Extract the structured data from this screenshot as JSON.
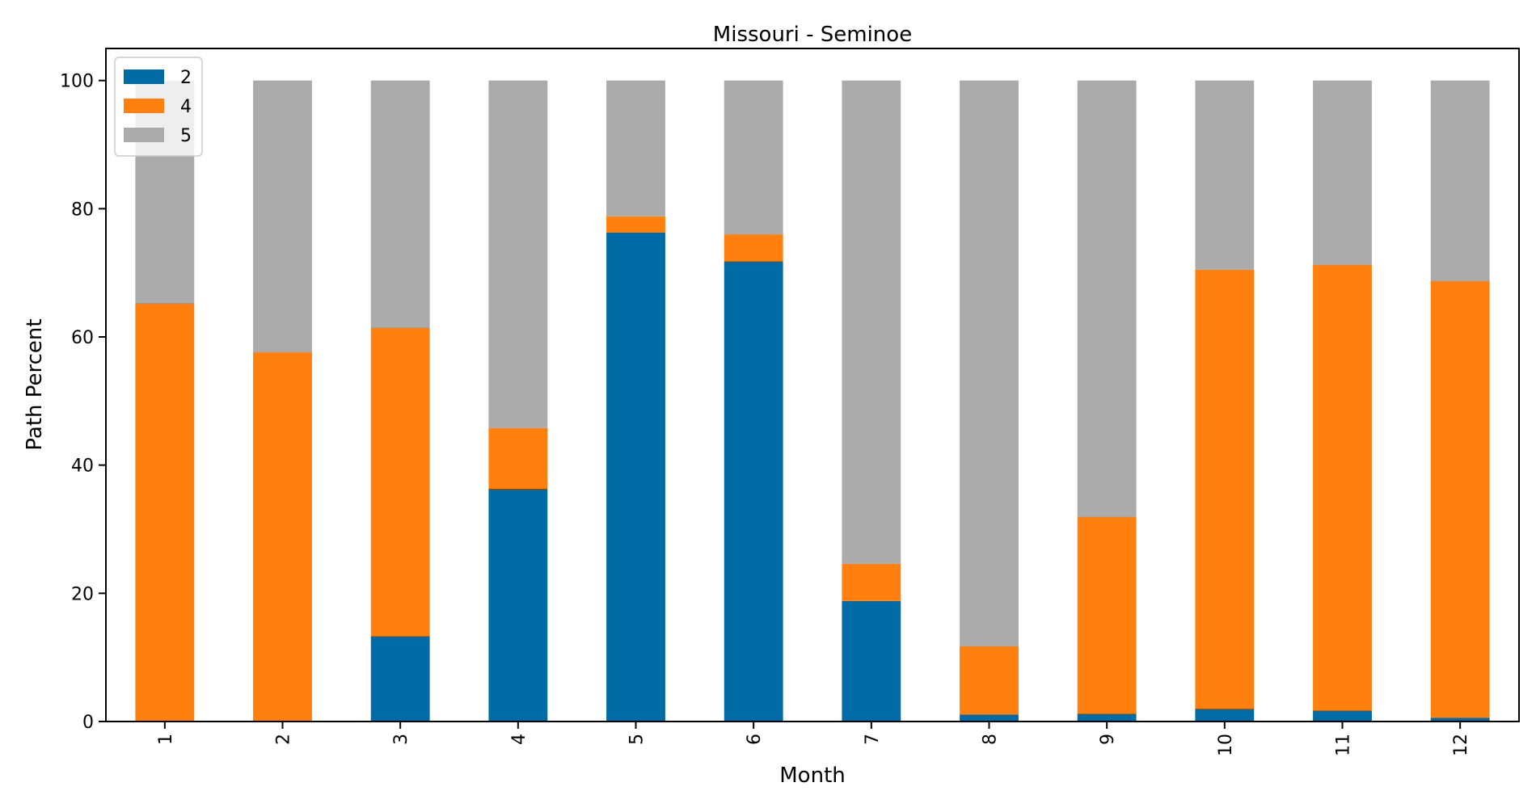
{
  "chart_data": {
    "type": "bar",
    "stacked": true,
    "title": "Missouri - Seminoe",
    "xlabel": "Month",
    "ylabel": "Path Percent",
    "categories": [
      "1",
      "2",
      "3",
      "4",
      "5",
      "6",
      "7",
      "8",
      "9",
      "10",
      "11",
      "12"
    ],
    "ylim": [
      0,
      105
    ],
    "yticks": [
      "0",
      "20",
      "40",
      "60",
      "80",
      "100"
    ],
    "legend_position": "top-left",
    "grid": false,
    "series": [
      {
        "name": "2",
        "color": "#006BA4",
        "values": [
          0,
          0,
          13.3,
          36.3,
          76.3,
          71.8,
          18.8,
          1.1,
          1.2,
          2.0,
          1.7,
          0.6
        ]
      },
      {
        "name": "4",
        "color": "#FF800E",
        "values": [
          65.3,
          57.6,
          48.2,
          9.5,
          2.5,
          4.2,
          5.8,
          10.7,
          30.8,
          68.5,
          69.6,
          68.2
        ]
      },
      {
        "name": "5",
        "color": "#ABABAB",
        "values": [
          34.7,
          42.4,
          38.5,
          54.2,
          21.2,
          24.0,
          75.4,
          88.2,
          68.0,
          29.5,
          28.7,
          31.2
        ]
      }
    ]
  }
}
